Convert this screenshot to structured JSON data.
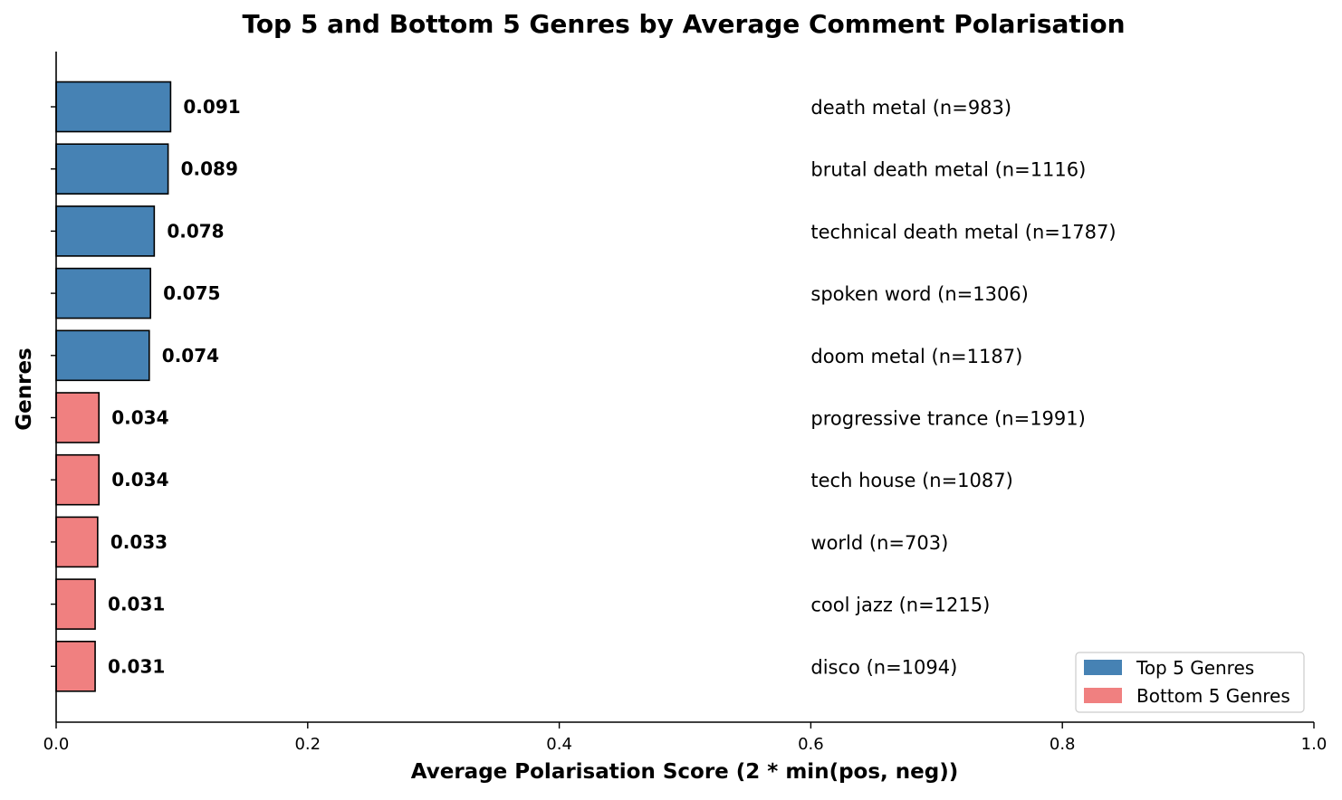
{
  "chart_data": {
    "type": "bar",
    "orientation": "horizontal",
    "title": "Top 5 and Bottom 5 Genres by Average Comment Polarisation",
    "xlabel": "Average Polarisation Score (2 * min(pos, neg))",
    "ylabel": "Genres",
    "xlim": [
      0.0,
      1.0
    ],
    "xticks": [
      "0.0",
      "0.2",
      "0.4",
      "0.6",
      "0.8",
      "1.0"
    ],
    "grid": false,
    "legend": {
      "position": "bottom-right",
      "entries": [
        {
          "label": "Top 5 Genres",
          "color": "#4682b4"
        },
        {
          "label": "Bottom 5 Genres",
          "color": "#f08080"
        }
      ]
    },
    "bars": [
      {
        "genre_label": "death metal (n=983)",
        "value": 0.091,
        "value_label": "0.091",
        "group": "top"
      },
      {
        "genre_label": "brutal death metal (n=1116)",
        "value": 0.089,
        "value_label": "0.089",
        "group": "top"
      },
      {
        "genre_label": "technical death metal (n=1787)",
        "value": 0.078,
        "value_label": "0.078",
        "group": "top"
      },
      {
        "genre_label": "spoken word (n=1306)",
        "value": 0.075,
        "value_label": "0.075",
        "group": "top"
      },
      {
        "genre_label": "doom metal (n=1187)",
        "value": 0.074,
        "value_label": "0.074",
        "group": "top"
      },
      {
        "genre_label": "progressive trance (n=1991)",
        "value": 0.034,
        "value_label": "0.034",
        "group": "bottom"
      },
      {
        "genre_label": "tech house (n=1087)",
        "value": 0.034,
        "value_label": "0.034",
        "group": "bottom"
      },
      {
        "genre_label": "world (n=703)",
        "value": 0.033,
        "value_label": "0.033",
        "group": "bottom"
      },
      {
        "genre_label": "cool jazz (n=1215)",
        "value": 0.031,
        "value_label": "0.031",
        "group": "bottom"
      },
      {
        "genre_label": "disco (n=1094)",
        "value": 0.031,
        "value_label": "0.031",
        "group": "bottom"
      }
    ],
    "colors": {
      "top": "#4682b4",
      "bottom": "#f08080"
    },
    "genre_label_x_value": 0.6
  }
}
